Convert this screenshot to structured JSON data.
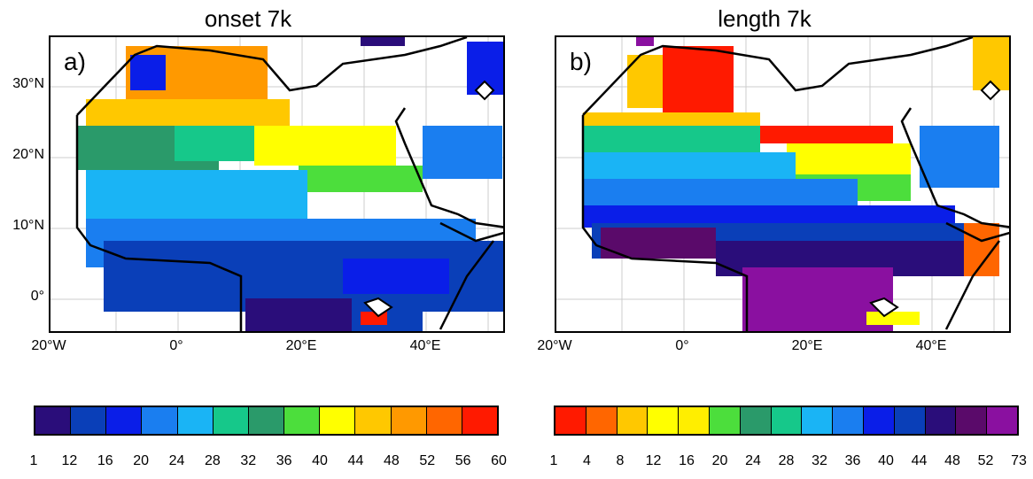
{
  "panels": [
    {
      "title": "onset 7k",
      "label": "a)",
      "lat_labels": [
        "30°N",
        "20°N",
        "10°N",
        "0°"
      ],
      "lon_labels": [
        "20°W",
        "0°",
        "20°E",
        "40°E"
      ],
      "colorbar": {
        "colors": [
          "#2a0d7a",
          "#0a3fb8",
          "#0a1ee8",
          "#1a7ef0",
          "#1ab4f5",
          "#16c88a",
          "#2a9a6a",
          "#4cde3c",
          "#ffff00",
          "#ffc800",
          "#ff9900",
          "#ff6600",
          "#ff1a00"
        ],
        "ticks": [
          "1",
          "12",
          "16",
          "20",
          "24",
          "28",
          "32",
          "36",
          "40",
          "44",
          "48",
          "52",
          "56",
          "60"
        ]
      }
    },
    {
      "title": "length 7k",
      "label": "b)",
      "lat_labels": [],
      "lon_labels": [
        "20°W",
        "0°",
        "20°E",
        "40°E"
      ],
      "colorbar": {
        "colors": [
          "#ff1a00",
          "#ff6600",
          "#ffc800",
          "#ffff00",
          "#ffee00",
          "#4cde3c",
          "#2a9a6a",
          "#16c88a",
          "#1ab4f5",
          "#1a7ef0",
          "#0a1ee8",
          "#0a3fb8",
          "#2a0d7a",
          "#5a0a6a",
          "#8a10a0"
        ],
        "ticks": [
          "1",
          "4",
          "8",
          "12",
          "16",
          "20",
          "24",
          "28",
          "32",
          "36",
          "40",
          "44",
          "48",
          "52",
          "73"
        ]
      }
    }
  ]
}
